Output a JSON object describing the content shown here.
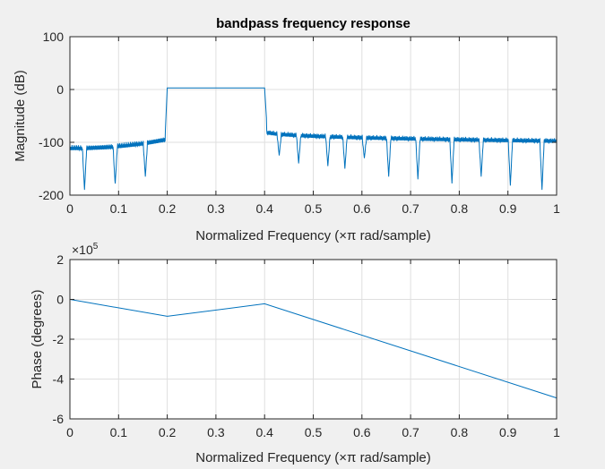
{
  "chart_data": [
    {
      "type": "line",
      "title": "bandpass frequency response",
      "xlabel": "Normalized Frequency  (×π rad/sample)",
      "ylabel": "Magnitude (dB)",
      "xlim": [
        0,
        1
      ],
      "ylim": [
        -200,
        100
      ],
      "xticks": [
        "0",
        "0.1",
        "0.2",
        "0.3",
        "0.4",
        "0.5",
        "0.6",
        "0.7",
        "0.8",
        "0.9",
        "1"
      ],
      "yticks": [
        "100",
        "0",
        "-100",
        "-200"
      ],
      "grid": true,
      "color": "#0072bd",
      "passband": [
        0.2,
        0.4
      ],
      "passband_level": 3,
      "stopband_lower_level": [
        -105,
        -88
      ],
      "stopband_upper_level": [
        -72,
        -92
      ],
      "nulls": [
        {
          "x": 0.03,
          "y": -190
        },
        {
          "x": 0.093,
          "y": -180
        },
        {
          "x": 0.155,
          "y": -165
        },
        {
          "x": 0.43,
          "y": -125
        },
        {
          "x": 0.47,
          "y": -140
        },
        {
          "x": 0.53,
          "y": -145
        },
        {
          "x": 0.565,
          "y": -150
        },
        {
          "x": 0.605,
          "y": -130
        },
        {
          "x": 0.655,
          "y": -165
        },
        {
          "x": 0.715,
          "y": -170
        },
        {
          "x": 0.785,
          "y": -178
        },
        {
          "x": 0.845,
          "y": -165
        },
        {
          "x": 0.905,
          "y": -182
        },
        {
          "x": 0.97,
          "y": -190
        }
      ]
    },
    {
      "type": "line",
      "title": "",
      "xlabel": "Normalized Frequency  (×π rad/sample)",
      "ylabel": "Phase (degrees)",
      "exponent_label": "×10",
      "exponent_power": "5",
      "xlim": [
        0,
        1
      ],
      "ylim": [
        -6,
        2
      ],
      "xticks": [
        "0",
        "0.1",
        "0.2",
        "0.3",
        "0.4",
        "0.5",
        "0.6",
        "0.7",
        "0.8",
        "0.9",
        "1"
      ],
      "yticks": [
        "2",
        "0",
        "-2",
        "-4",
        "-6"
      ],
      "grid": true,
      "color": "#0072bd",
      "x": [
        0,
        0.2,
        0.4,
        1.0
      ],
      "y": [
        0,
        -0.85,
        -0.22,
        -4.95
      ]
    }
  ]
}
